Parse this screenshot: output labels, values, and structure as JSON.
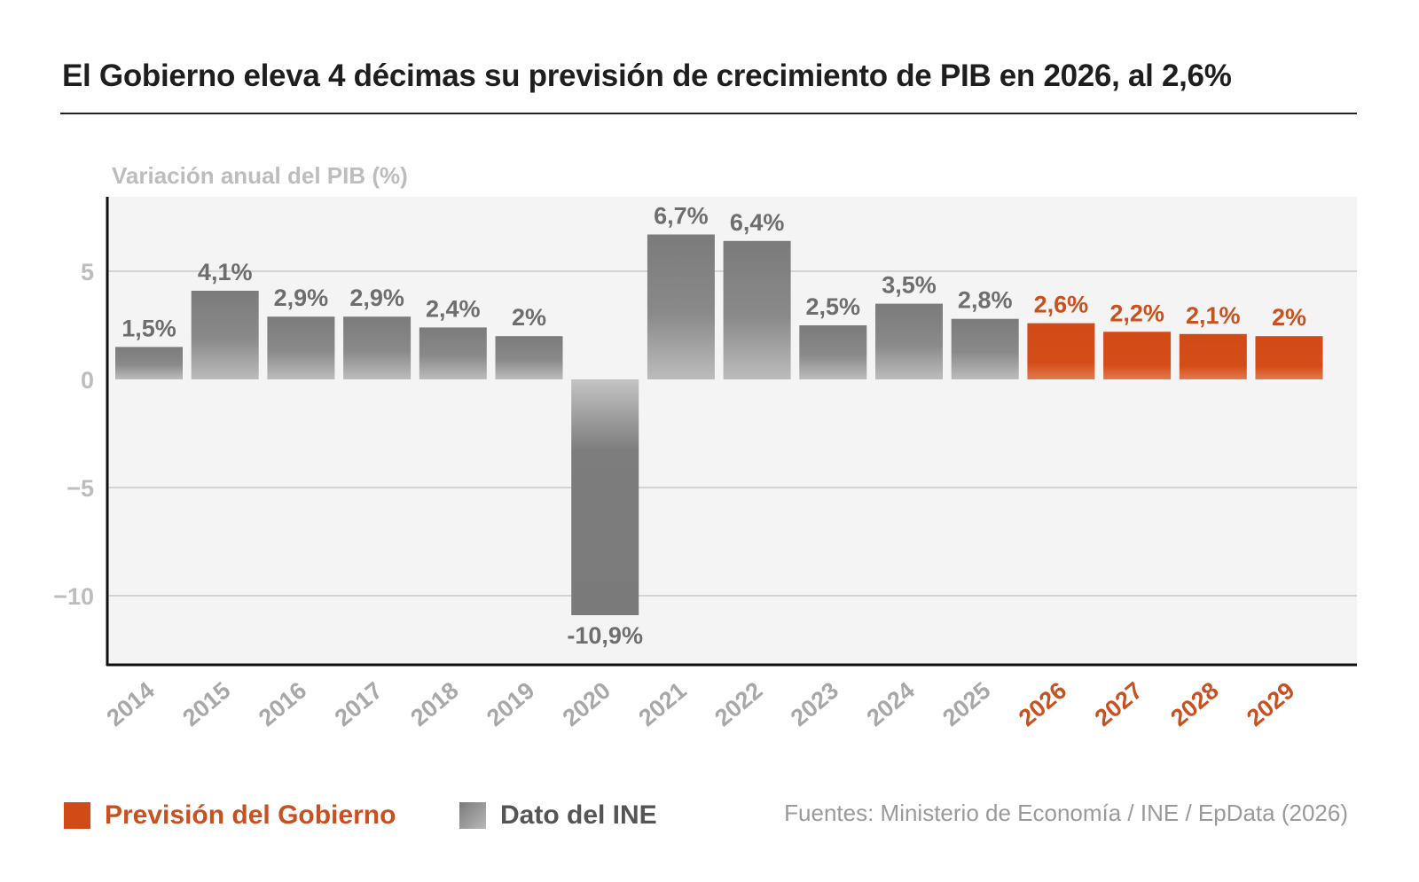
{
  "title": "El Gobierno eleva 4 décimas su previsión de crecimiento de PIB en 2026, al 2,6%",
  "source": "Fuentes: Ministerio de Economía / INE / EpData (2026)",
  "legend": {
    "forecast_label": "Previsión del Gobierno",
    "ine_label": "Dato del INE"
  },
  "colors": {
    "forecast": "#d24a16",
    "forecast_text": "#c9501f",
    "ine_dark": "#7b7b7b",
    "ine_light": "#b8b8b8",
    "ine_text": "#6e6e6e",
    "axis_text": "#bdbdbd",
    "plot_bg": "#f4f4f4"
  },
  "chart_data": {
    "type": "bar",
    "ylabel": "Variación anual del PIB (%)",
    "ylim": [
      -13,
      8
    ],
    "yticks": [
      5,
      0,
      -5,
      -10
    ],
    "ytick_labels": [
      "5",
      "0",
      "−5",
      "−10"
    ],
    "grid": true,
    "categories": [
      "2014",
      "2015",
      "2016",
      "2017",
      "2018",
      "2019",
      "2020",
      "2021",
      "2022",
      "2023",
      "2024",
      "2025",
      "2026",
      "2027",
      "2028",
      "2029"
    ],
    "values": [
      1.5,
      4.1,
      2.9,
      2.9,
      2.4,
      2,
      -10.9,
      6.7,
      6.4,
      2.5,
      3.5,
      2.8,
      2.6,
      2.2,
      2.1,
      2
    ],
    "value_labels": [
      "1,5%",
      "4,1%",
      "2,9%",
      "2,9%",
      "2,4%",
      "2%",
      "-10,9%",
      "6,7%",
      "6,4%",
      "2,5%",
      "3,5%",
      "2,8%",
      "2,6%",
      "2,2%",
      "2,1%",
      "2%"
    ],
    "series_kind": [
      "Dato del INE",
      "Dato del INE",
      "Dato del INE",
      "Dato del INE",
      "Dato del INE",
      "Dato del INE",
      "Dato del INE",
      "Dato del INE",
      "Dato del INE",
      "Dato del INE",
      "Dato del INE",
      "Dato del INE",
      "Previsión del Gobierno",
      "Previsión del Gobierno",
      "Previsión del Gobierno",
      "Previsión del Gobierno"
    ],
    "legend_position": "bottom-left"
  }
}
